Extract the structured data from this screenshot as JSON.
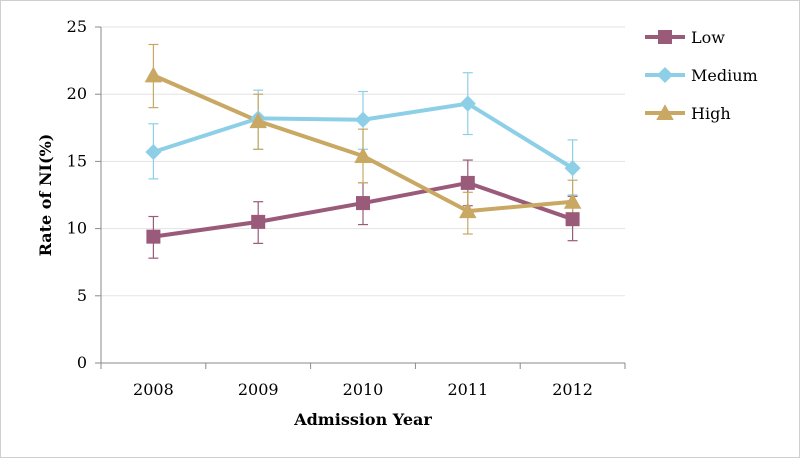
{
  "chart_data": {
    "type": "line",
    "title": "",
    "xlabel": "Admission Year",
    "ylabel": "Rate of NI(%)",
    "categories": [
      "2008",
      "2009",
      "2010",
      "2011",
      "2012"
    ],
    "ylim": [
      0,
      25
    ],
    "yticks": [
      "0",
      "5",
      "10",
      "15",
      "20",
      "25"
    ],
    "grid": "horizontal",
    "legend": "right",
    "series": [
      {
        "name": "Low",
        "color": "#9a5a7a",
        "marker": "square",
        "values": [
          9.4,
          10.5,
          11.9,
          13.4,
          10.7
        ],
        "err_low": [
          7.8,
          8.9,
          10.3,
          11.7,
          9.1
        ],
        "err_high": [
          10.9,
          12.0,
          13.4,
          15.1,
          12.4
        ]
      },
      {
        "name": "Medium",
        "color": "#8ecfe8",
        "marker": "diamond",
        "values": [
          15.7,
          18.2,
          18.1,
          19.3,
          14.5
        ],
        "err_low": [
          13.7,
          15.9,
          15.9,
          17.0,
          12.5
        ],
        "err_high": [
          17.8,
          20.3,
          20.2,
          21.6,
          16.6
        ]
      },
      {
        "name": "High",
        "color": "#c8a862",
        "marker": "triangle",
        "values": [
          21.4,
          18.0,
          15.4,
          11.3,
          12.0
        ],
        "err_low": [
          19.0,
          15.9,
          13.4,
          9.6,
          10.5
        ],
        "err_high": [
          23.7,
          20.0,
          17.4,
          12.7,
          13.6
        ]
      }
    ]
  }
}
